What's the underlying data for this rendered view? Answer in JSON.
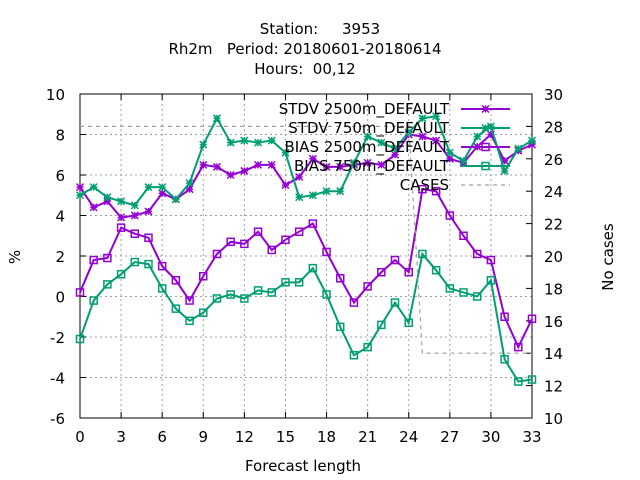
{
  "title": {
    "line1": "Station:     3953",
    "line2": "Rh2m   Period: 20180601-20180614",
    "line3": "Hours:  00,12"
  },
  "chart_data": {
    "type": "line",
    "xlabel": "Forecast length",
    "ylabel": "%",
    "y2label": "No cases",
    "xlim": [
      0,
      33
    ],
    "ylim": [
      -6,
      10
    ],
    "y2lim": [
      10,
      30
    ],
    "xticks": [
      0,
      3,
      6,
      9,
      12,
      15,
      18,
      21,
      24,
      27,
      30,
      33
    ],
    "yticks": [
      -6,
      -4,
      -2,
      0,
      2,
      4,
      6,
      8,
      10
    ],
    "y2ticks": [
      10,
      12,
      14,
      16,
      18,
      20,
      22,
      24,
      26,
      28,
      30
    ],
    "grid": true,
    "legend_position": "top-right",
    "x": [
      0,
      1,
      2,
      3,
      4,
      5,
      6,
      7,
      8,
      9,
      10,
      11,
      12,
      13,
      14,
      15,
      16,
      17,
      18,
      19,
      20,
      21,
      22,
      23,
      24,
      25,
      26,
      27,
      28,
      29,
      30,
      31,
      32,
      33
    ],
    "series": [
      {
        "name": "STDV 2500m_DEFAULT",
        "color": "#9400d3",
        "marker": "star",
        "axis": "y",
        "values": [
          5.4,
          4.4,
          4.7,
          3.9,
          4.0,
          4.2,
          5.1,
          4.8,
          5.3,
          6.5,
          6.4,
          6.0,
          6.2,
          6.5,
          6.5,
          5.5,
          5.9,
          6.8,
          6.4,
          6.4,
          6.5,
          6.6,
          6.5,
          7.0,
          8.0,
          7.9,
          7.7,
          6.8,
          6.6,
          7.4,
          8.0,
          6.7,
          7.2,
          7.5
        ]
      },
      {
        "name": "STDV 750m_DEFAULT",
        "color": "#009e73",
        "marker": "star",
        "axis": "y",
        "values": [
          5.0,
          5.4,
          4.9,
          4.7,
          4.5,
          5.4,
          5.4,
          4.8,
          5.6,
          7.5,
          8.8,
          7.6,
          7.7,
          7.6,
          7.7,
          7.1,
          4.9,
          5.0,
          5.2,
          5.2,
          6.6,
          7.9,
          7.6,
          7.3,
          8.1,
          8.8,
          8.9,
          7.1,
          6.7,
          7.9,
          8.4,
          6.2,
          7.3,
          7.7
        ]
      },
      {
        "name": "BIAS 2500m_DEFAULT",
        "color": "#9400d3",
        "marker": "square",
        "axis": "y",
        "values": [
          0.2,
          1.8,
          1.9,
          3.4,
          3.1,
          2.9,
          1.5,
          0.8,
          -0.2,
          1.0,
          2.1,
          2.7,
          2.6,
          3.2,
          2.3,
          2.8,
          3.2,
          3.6,
          2.2,
          0.9,
          -0.3,
          0.5,
          1.2,
          1.8,
          1.2,
          5.3,
          5.2,
          4.0,
          3.0,
          2.1,
          1.8,
          -1.0,
          -2.5,
          -1.1
        ]
      },
      {
        "name": "BIAS 750m_DEFAULT",
        "color": "#009e73",
        "marker": "square",
        "axis": "y",
        "values": [
          -2.1,
          -0.2,
          0.6,
          1.1,
          1.7,
          1.6,
          0.4,
          -0.6,
          -1.2,
          -0.8,
          -0.1,
          0.1,
          -0.1,
          0.3,
          0.2,
          0.7,
          0.7,
          1.4,
          0.1,
          -1.5,
          -2.9,
          -2.5,
          -1.4,
          -0.3,
          -1.3,
          2.1,
          1.3,
          0.4,
          0.2,
          0.0,
          0.8,
          -3.1,
          -4.2,
          -4.1
        ]
      },
      {
        "name": "CASES",
        "color": "#a0a0a0",
        "marker": "none",
        "dash": true,
        "axis": "y2",
        "values": [
          28,
          28,
          28,
          28,
          28,
          28,
          28,
          28,
          28,
          28,
          28,
          28,
          28,
          28,
          28,
          28,
          28,
          28,
          28,
          28,
          28,
          28,
          28,
          28,
          28,
          14,
          14,
          14,
          14,
          14,
          14,
          14,
          14,
          14
        ]
      }
    ]
  }
}
